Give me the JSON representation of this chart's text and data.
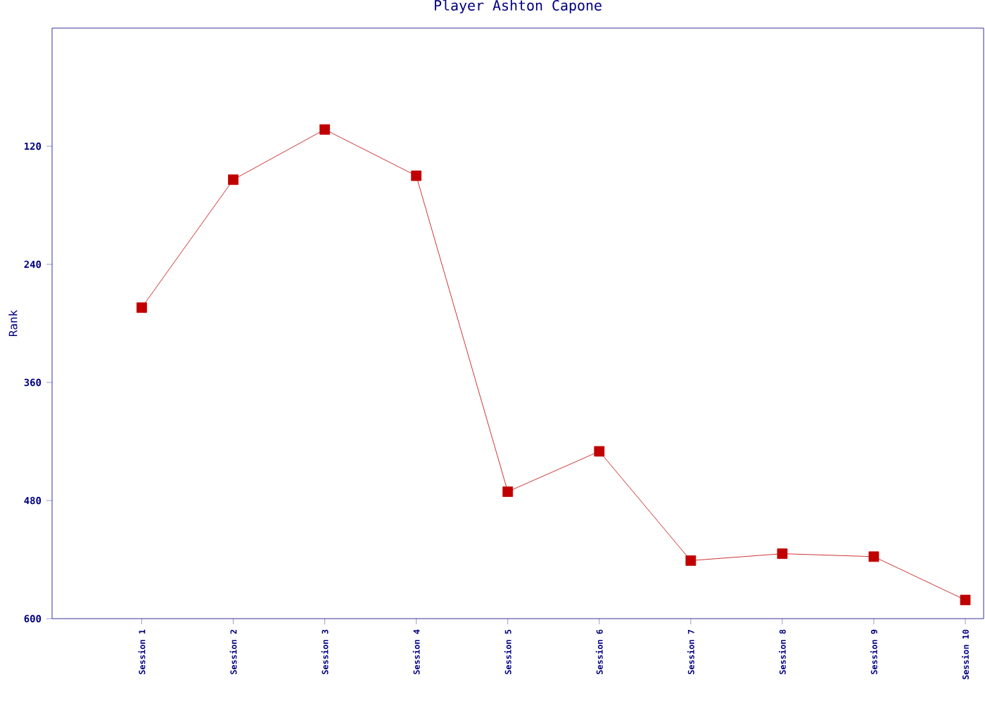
{
  "chart_data": {
    "type": "line",
    "title": "Player Ashton Capone",
    "ylabel": "Rank",
    "categories": [
      "Session 1",
      "Session 2",
      "Session 3",
      "Session 4",
      "Session 5",
      "Session 6",
      "Session 7",
      "Session 8",
      "Session 9",
      "Session 10"
    ],
    "series": [
      {
        "color": "#c00000",
        "values": [
          284,
          154,
          103,
          150,
          471,
          430,
          541,
          534,
          537,
          581
        ]
      }
    ],
    "ylim": [
      600,
      0
    ],
    "yticks": [
      120,
      240,
      360,
      480,
      600
    ],
    "marker": "square",
    "line_style": "solid",
    "grid": false
  }
}
